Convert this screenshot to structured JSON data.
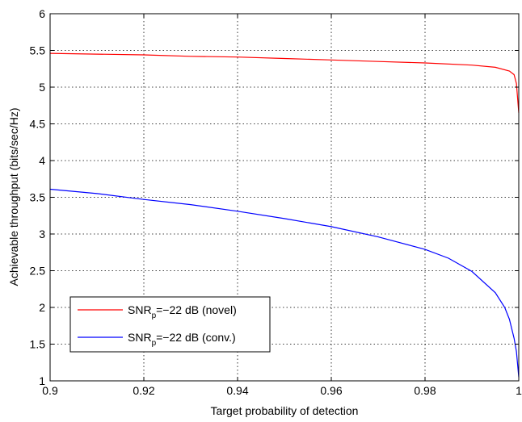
{
  "chart_data": {
    "type": "line",
    "title": "",
    "xlabel": "Target probability of detection",
    "ylabel": "Achievable throughput (bits/sec/Hz)",
    "xlim": [
      0.9,
      1
    ],
    "ylim": [
      1,
      6
    ],
    "xticks": [
      "0.9",
      "0.92",
      "0.94",
      "0.96",
      "0.98",
      "1"
    ],
    "yticks": [
      "1",
      "1.5",
      "2",
      "2.5",
      "3",
      "3.5",
      "4",
      "4.5",
      "5",
      "5.5",
      "6"
    ],
    "grid": true,
    "legend_position": "bottom-left",
    "series": [
      {
        "name": "SNR_p=−22 dB (novel)",
        "legend_main": "SNR",
        "legend_sub": "p",
        "legend_rest": "=−22 dB (novel)",
        "color": "#ff0000",
        "x": [
          0.9,
          0.91,
          0.92,
          0.93,
          0.94,
          0.95,
          0.96,
          0.97,
          0.98,
          0.99,
          0.995,
          0.998,
          0.999,
          0.9995,
          1.0
        ],
        "y": [
          5.46,
          5.45,
          5.44,
          5.42,
          5.41,
          5.39,
          5.37,
          5.35,
          5.33,
          5.3,
          5.27,
          5.22,
          5.17,
          5.05,
          4.65
        ]
      },
      {
        "name": "SNR_p=−22 dB (conv.)",
        "legend_main": "SNR",
        "legend_sub": "p",
        "legend_rest": "=−22 dB (conv.)",
        "color": "#0000ff",
        "x": [
          0.9,
          0.91,
          0.92,
          0.93,
          0.94,
          0.95,
          0.96,
          0.97,
          0.98,
          0.985,
          0.99,
          0.995,
          0.997,
          0.998,
          0.999,
          0.9995,
          1.0
        ],
        "y": [
          3.61,
          3.55,
          3.47,
          3.4,
          3.31,
          3.21,
          3.1,
          2.96,
          2.79,
          2.67,
          2.49,
          2.2,
          2.0,
          1.84,
          1.58,
          1.4,
          1.05
        ]
      }
    ]
  }
}
